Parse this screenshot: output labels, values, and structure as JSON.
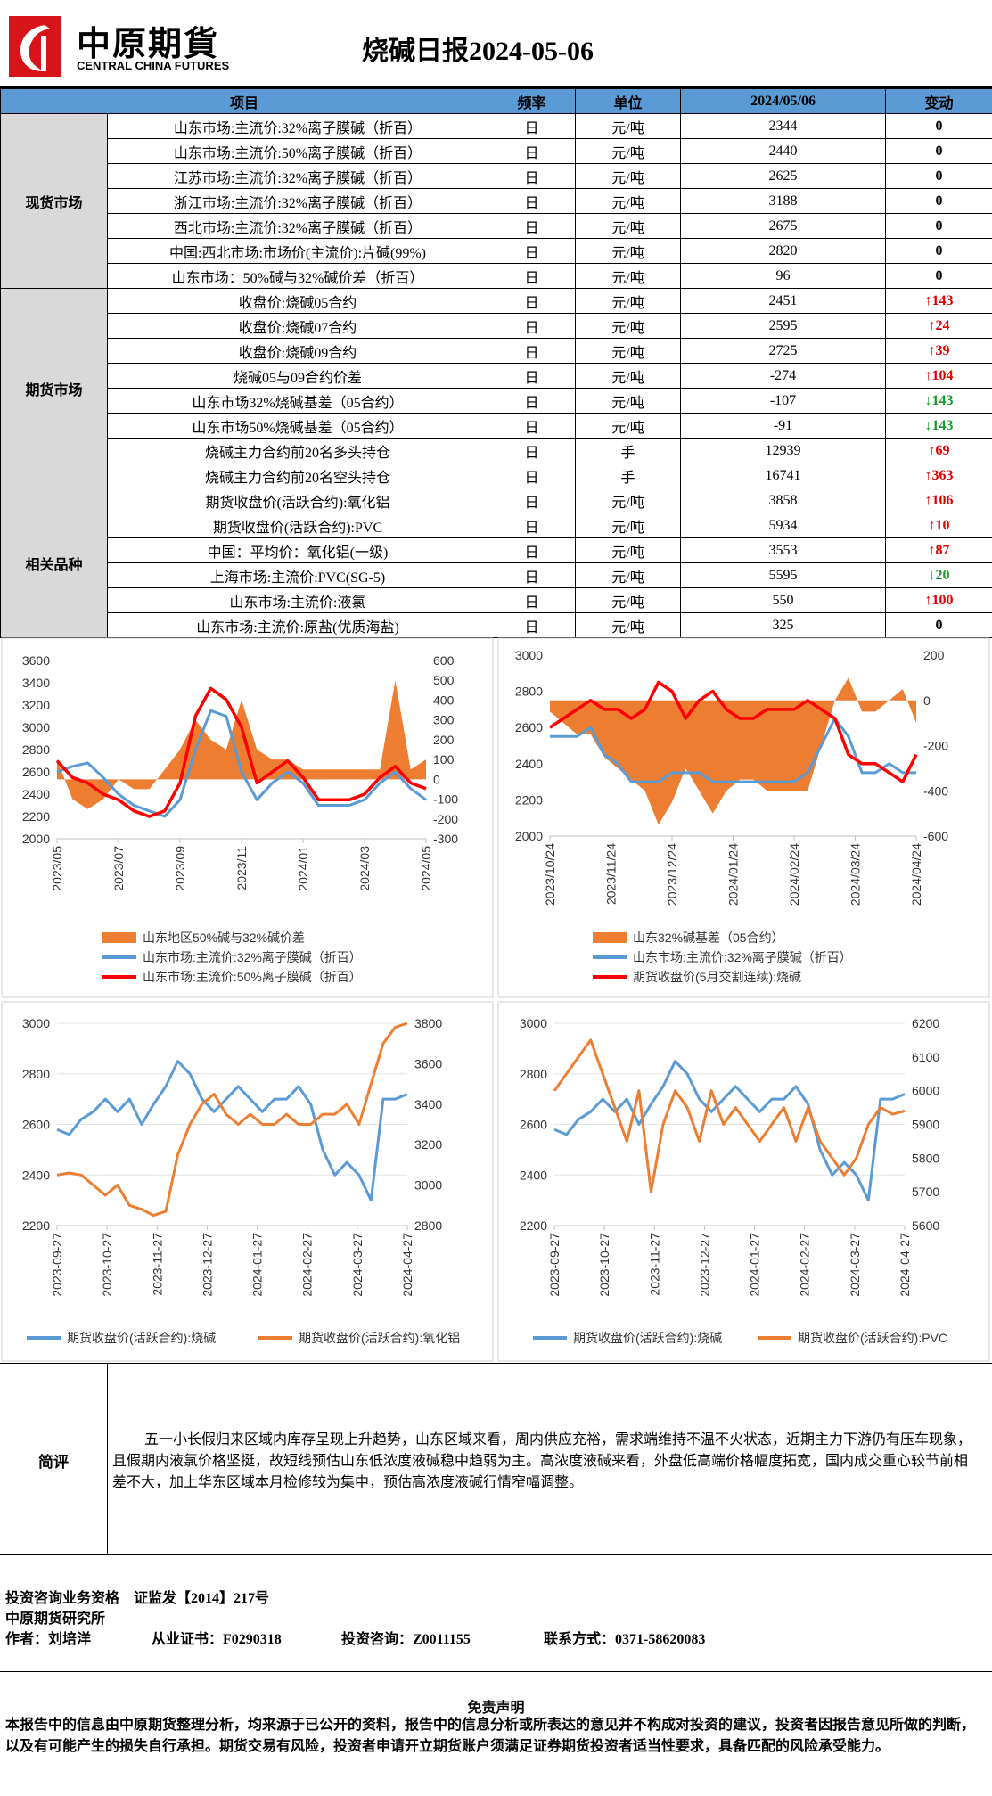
{
  "header": {
    "brand": "中原期貨",
    "brand_en": "CENTRAL CHINA FUTURES",
    "title": "烧碱日报2024-05-06"
  },
  "table": {
    "columns": [
      "项目",
      "频率",
      "单位",
      "2024/05/06",
      "变动"
    ],
    "groups": [
      {
        "name": "现货市场",
        "rows": [
          [
            "山东市场:主流价:32%离子膜碱（折百）",
            "日",
            "元/吨",
            2344,
            0
          ],
          [
            "山东市场:主流价:50%离子膜碱（折百）",
            "日",
            "元/吨",
            2440,
            0
          ],
          [
            "江苏市场:主流价:32%离子膜碱（折百）",
            "日",
            "元/吨",
            2625,
            0
          ],
          [
            "浙江市场:主流价:32%离子膜碱（折百）",
            "日",
            "元/吨",
            3188,
            0
          ],
          [
            "西北市场:主流价:32%离子膜碱（折百）",
            "日",
            "元/吨",
            2675,
            0
          ],
          [
            "中国:西北市场:市场价(主流价):片碱(99%)",
            "日",
            "元/吨",
            2820,
            0
          ],
          [
            "山东市场：50%碱与32%碱价差（折百）",
            "日",
            "元/吨",
            96,
            0
          ]
        ]
      },
      {
        "name": "期货市场",
        "rows": [
          [
            "收盘价:烧碱05合约",
            "日",
            "元/吨",
            2451,
            "↑143"
          ],
          [
            "收盘价:烧碱07合约",
            "日",
            "元/吨",
            2595,
            "↑24"
          ],
          [
            "收盘价:烧碱09合约",
            "日",
            "元/吨",
            2725,
            "↑39"
          ],
          [
            "烧碱05与09合约价差",
            "日",
            "元/吨",
            -274,
            "↑104"
          ],
          [
            "山东市场32%烧碱基差（05合约）",
            "日",
            "元/吨",
            -107,
            "↓143"
          ],
          [
            "山东市场50%烧碱基差（05合约）",
            "日",
            "元/吨",
            -91,
            "↓143"
          ],
          [
            "烧碱主力合约前20名多头持仓",
            "日",
            "手",
            12939,
            "↑69"
          ],
          [
            "烧碱主力合约前20名空头持仓",
            "日",
            "手",
            16741,
            "↑363"
          ]
        ]
      },
      {
        "name": "相关品种",
        "rows": [
          [
            "期货收盘价(活跃合约):氧化铝",
            "日",
            "元/吨",
            3858,
            "↑106"
          ],
          [
            "期货收盘价(活跃合约):PVC",
            "日",
            "元/吨",
            5934,
            "↑10"
          ],
          [
            "中国：平均价：氧化铝(一级)",
            "日",
            "元/吨",
            3553,
            "↑87"
          ],
          [
            "上海市场:主流价:PVC(SG-5)",
            "日",
            "元/吨",
            5595,
            "↓20"
          ],
          [
            "山东市场:主流价:液氯",
            "日",
            "元/吨",
            550,
            "↑100"
          ],
          [
            "山东市场:主流价:原盐(优质海盐)",
            "日",
            "元/吨",
            325,
            0
          ]
        ]
      }
    ]
  },
  "chart_data": [
    {
      "type": "line",
      "ylim": [
        2000,
        3600
      ],
      "yticks": [
        2000,
        2200,
        2400,
        2600,
        2800,
        3000,
        3200,
        3400,
        3600
      ],
      "y2lim": [
        -300,
        600
      ],
      "y2ticks": [
        -300,
        -200,
        -100,
        0,
        100,
        200,
        300,
        400,
        500,
        600
      ],
      "xtick_labels": [
        "2023/05",
        "2023/07",
        "2023/09",
        "2023/11",
        "2024/01",
        "2024/03",
        "2024/05"
      ],
      "grid": false,
      "series": [
        {
          "name": "山东地区50%碱与32%碱价差",
          "color": "#ed7d31",
          "style": "area",
          "axis": "y2",
          "values": [
            100,
            -100,
            -150,
            -100,
            0,
            -50,
            -50,
            50,
            150,
            300,
            200,
            150,
            400,
            150,
            100,
            100,
            50,
            50,
            50,
            50,
            50,
            50,
            500,
            50,
            100
          ]
        },
        {
          "name": "山东市场:主流价:32%离子膜碱（折百）",
          "color": "#5b9bd5",
          "style": "line",
          "values": [
            2600,
            2650,
            2680,
            2550,
            2400,
            2300,
            2250,
            2200,
            2350,
            2800,
            3150,
            3100,
            2600,
            2350,
            2500,
            2600,
            2500,
            2300,
            2300,
            2300,
            2350,
            2500,
            2600,
            2450,
            2350
          ]
        },
        {
          "name": "山东市场:主流价:50%离子膜碱（折百）",
          "color": "#ff0000",
          "style": "line",
          "values": [
            2700,
            2550,
            2500,
            2400,
            2350,
            2250,
            2200,
            2250,
            2500,
            3100,
            3350,
            3250,
            3000,
            2500,
            2600,
            2700,
            2550,
            2350,
            2350,
            2350,
            2400,
            2550,
            2650,
            2500,
            2450
          ]
        }
      ]
    },
    {
      "type": "line",
      "ylim": [
        2000,
        3000
      ],
      "yticks": [
        2000,
        2200,
        2400,
        2600,
        2800,
        3000
      ],
      "y2lim": [
        -600,
        200
      ],
      "y2ticks": [
        -600,
        -400,
        -200,
        0,
        200
      ],
      "xtick_labels": [
        "2023/10/24",
        "2023/11/24",
        "2023/12/24",
        "2024/01/24",
        "2024/02/24",
        "2024/03/24",
        "2024/04/24"
      ],
      "grid": false,
      "series": [
        {
          "name": "山东32%碱基差（05合约）",
          "color": "#ed7d31",
          "style": "area",
          "axis": "y2",
          "values": [
            -50,
            -100,
            -150,
            -150,
            -250,
            -300,
            -350,
            -400,
            -550,
            -450,
            -300,
            -400,
            -500,
            -400,
            -350,
            -350,
            -400,
            -400,
            -400,
            -400,
            -200,
            0,
            100,
            -50,
            -50,
            0,
            50,
            -100
          ]
        },
        {
          "name": "山东市场:主流价:32%离子膜碱（折百）",
          "color": "#5b9bd5",
          "style": "line",
          "values": [
            2550,
            2550,
            2550,
            2600,
            2450,
            2400,
            2300,
            2300,
            2300,
            2350,
            2350,
            2350,
            2300,
            2300,
            2300,
            2300,
            2300,
            2300,
            2300,
            2350,
            2500,
            2650,
            2550,
            2350,
            2350,
            2400,
            2350,
            2350
          ]
        },
        {
          "name": "期货收盘价(5月交割连续):烧碱",
          "color": "#ff0000",
          "style": "line",
          "values": [
            2600,
            2650,
            2700,
            2750,
            2700,
            2700,
            2650,
            2700,
            2850,
            2800,
            2650,
            2750,
            2800,
            2700,
            2650,
            2650,
            2700,
            2700,
            2700,
            2750,
            2700,
            2650,
            2450,
            2400,
            2400,
            2350,
            2300,
            2450
          ]
        }
      ]
    },
    {
      "type": "line",
      "ylim": [
        2200,
        3000
      ],
      "yticks": [
        2200,
        2400,
        2600,
        2800,
        3000
      ],
      "y2lim": [
        2800,
        3800
      ],
      "y2ticks": [
        2800,
        3000,
        3200,
        3400,
        3600,
        3800
      ],
      "xtick_labels": [
        "2023-09-27",
        "2023-10-27",
        "2023-11-27",
        "2023-12-27",
        "2024-01-27",
        "2024-02-27",
        "2024-03-27",
        "2024-04-27"
      ],
      "grid": true,
      "series": [
        {
          "name": "期货收盘价(活跃合约):烧碱",
          "color": "#5b9bd5",
          "style": "line",
          "values": [
            2580,
            2560,
            2620,
            2650,
            2700,
            2650,
            2700,
            2600,
            2680,
            2750,
            2850,
            2800,
            2700,
            2650,
            2700,
            2750,
            2700,
            2650,
            2700,
            2700,
            2750,
            2680,
            2500,
            2400,
            2450,
            2400,
            2300,
            2700,
            2700,
            2720
          ]
        },
        {
          "name": "期货收盘价(活跃合约):氧化铝",
          "color": "#ed7d31",
          "style": "line",
          "axis": "y2",
          "values": [
            3050,
            3060,
            3050,
            3000,
            2950,
            3000,
            2900,
            2880,
            2850,
            2870,
            3150,
            3300,
            3400,
            3450,
            3350,
            3300,
            3350,
            3300,
            3300,
            3350,
            3300,
            3300,
            3350,
            3350,
            3400,
            3300,
            3500,
            3700,
            3780,
            3800
          ]
        }
      ]
    },
    {
      "type": "line",
      "ylim": [
        2200,
        3000
      ],
      "yticks": [
        2200,
        2400,
        2600,
        2800,
        3000
      ],
      "y2lim": [
        5600,
        6200
      ],
      "y2ticks": [
        5600,
        5700,
        5800,
        5900,
        6000,
        6100,
        6200
      ],
      "xtick_labels": [
        "2023-09-27",
        "2023-10-27",
        "2023-11-27",
        "2023-12-27",
        "2024-01-27",
        "2024-02-27",
        "2024-03-27",
        "2024-04-27"
      ],
      "grid": true,
      "series": [
        {
          "name": "期货收盘价(活跃合约):烧碱",
          "color": "#5b9bd5",
          "style": "line",
          "values": [
            2580,
            2560,
            2620,
            2650,
            2700,
            2650,
            2700,
            2600,
            2680,
            2750,
            2850,
            2800,
            2700,
            2650,
            2700,
            2750,
            2700,
            2650,
            2700,
            2700,
            2750,
            2680,
            2500,
            2400,
            2450,
            2400,
            2300,
            2700,
            2700,
            2720
          ]
        },
        {
          "name": "期货收盘价(活跃合约):PVC",
          "color": "#ed7d31",
          "style": "line",
          "axis": "y2",
          "values": [
            6000,
            6050,
            6100,
            6150,
            6050,
            5950,
            5850,
            6000,
            5700,
            5900,
            6000,
            5950,
            5850,
            6000,
            5900,
            5950,
            5900,
            5850,
            5900,
            5950,
            5850,
            5950,
            5850,
            5800,
            5750,
            5800,
            5900,
            5950,
            5930,
            5940
          ]
        }
      ]
    }
  ],
  "comment": {
    "label": "简评",
    "text": "五一小长假归来区域内库存呈现上升趋势，山东区域来看，周内供应充裕，需求端维持不温不火状态，近期主力下游仍有压车现象，且假期内液氯价格坚挺，故短线预估山东低浓度液碱稳中趋弱为主。高浓度液碱来看，外盘低高端价格幅度拓宽，国内成交重心较节前相差不大，加上华东区域本月检修较为集中，预估高浓度液碱行情窄幅调整。"
  },
  "footer": {
    "qualification": "投资咨询业务资格　证监发【2014】217号",
    "institute": "中原期货研究所",
    "author": "作者：刘培洋",
    "cert": "从业证书：F0290318",
    "consult": "投资咨询：Z0011155",
    "contact": "联系方式：0371-58620083"
  },
  "disclaimer": {
    "title": "免责声明",
    "text": "本报告中的信息由中原期货整理分析，均来源于已公开的资料，报告中的信息分析或所表达的意见并不构成对投资的建议，投资者因报告意见所做的判断，以及有可能产生的损失自行承担。期货交易有风险，投资者申请开立期货账户须满足证券期货投资者适当性要求，具备匹配的风险承受能力。"
  }
}
